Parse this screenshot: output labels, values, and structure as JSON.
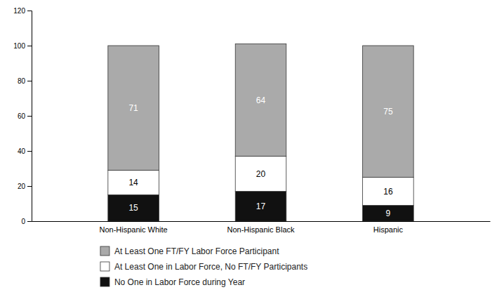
{
  "chart_data": {
    "type": "bar",
    "stacked": true,
    "categories": [
      "Non-Hispanic White",
      "Non-Hispanic Black",
      "Hispanic"
    ],
    "series": [
      {
        "name": "At Least One FT/FY Labor Force Participant",
        "color": "#aaaaaa",
        "values": [
          71,
          64,
          75
        ]
      },
      {
        "name": "At Least One in Labor Force, No FT/FY Participants",
        "color": "#ffffff",
        "values": [
          14,
          20,
          16
        ]
      },
      {
        "name": "No One in Labor Force during Year",
        "color": "#111111",
        "values": [
          15,
          17,
          9
        ]
      }
    ],
    "ylim": [
      0,
      120
    ],
    "yticks": [
      0,
      20,
      40,
      60,
      80,
      100,
      120
    ],
    "data_labels": true,
    "grid": false,
    "legend": "bottom"
  }
}
